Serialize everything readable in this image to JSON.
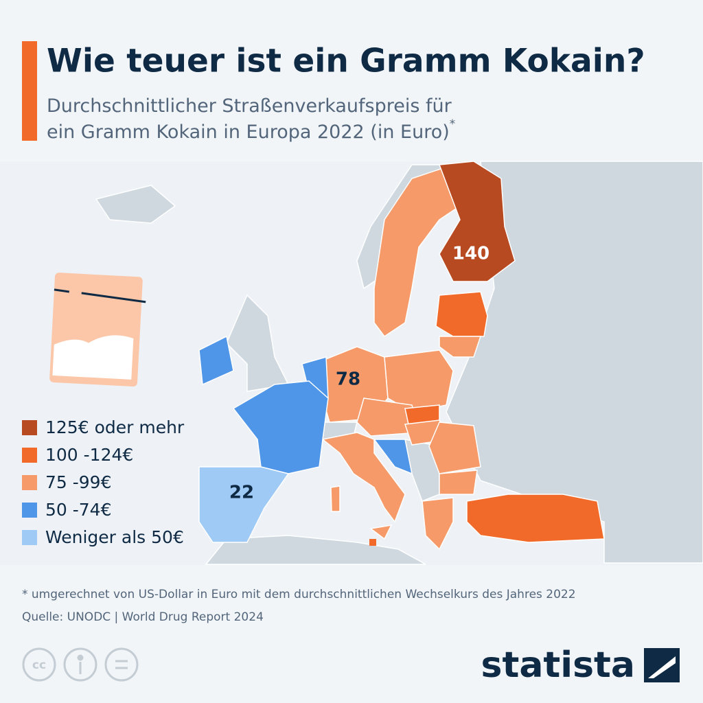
{
  "header": {
    "title": "Wie teuer ist ein Gramm Kokain?",
    "subtitle": "Durchschnittlicher Straßenverkaufspreis für ein Gramm Kokain in Europa 2022 (in Euro)",
    "subtitle_mark": "*"
  },
  "legend": [
    {
      "name": "125€ oder mehr",
      "color": "#b84a22"
    },
    {
      "name": "100 -124€",
      "color": "#f26a2a"
    },
    {
      "name": "75 -99€",
      "color": "#f59a68"
    },
    {
      "name": "50 -74€",
      "color": "#4f96e8"
    },
    {
      "name": "Weniger als 50€",
      "color": "#9fcaf5"
    }
  ],
  "map_labels": [
    140,
    78,
    22
  ],
  "footer": {
    "note": "* umgerechnet von US-Dollar in Euro mit dem durchschnittlichen Wechselkurs des Jahres 2022",
    "source": "Quelle: UNODC | World Drug Report 2024",
    "license": "cc",
    "logo": "statista"
  }
}
